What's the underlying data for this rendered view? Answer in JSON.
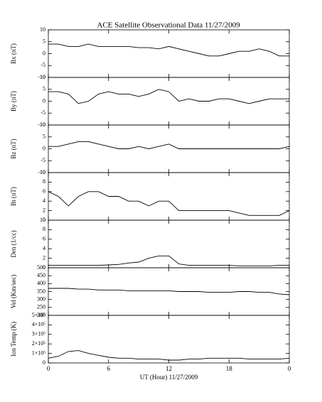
{
  "title": "ACE Satellite Observational Data   11/27/2009",
  "chart_data": [
    {
      "type": "line",
      "ylabel": "Bx (nT)",
      "xlim": [
        0,
        24
      ],
      "x": [
        0,
        1,
        2,
        3,
        4,
        5,
        6,
        7,
        8,
        9,
        10,
        11,
        12,
        13,
        14,
        15,
        16,
        17,
        18,
        19,
        20,
        21,
        22,
        23,
        24
      ],
      "values": [
        4,
        4,
        3,
        3,
        4,
        3,
        3,
        3,
        3,
        2.5,
        2.5,
        2,
        3,
        2,
        1,
        0,
        -1,
        -1,
        0,
        1,
        1,
        2,
        1,
        -1,
        -1
      ],
      "ylim": [
        -10,
        10
      ],
      "yticks": [
        -10,
        -5,
        0,
        5,
        10
      ],
      "color": "#000000"
    },
    {
      "type": "line",
      "ylabel": "By (nT)",
      "xlim": [
        0,
        24
      ],
      "x": [
        0,
        1,
        2,
        3,
        4,
        5,
        6,
        7,
        8,
        9,
        10,
        11,
        12,
        13,
        14,
        15,
        16,
        17,
        18,
        19,
        20,
        21,
        22,
        23,
        24
      ],
      "values": [
        4,
        4,
        3,
        -1,
        0,
        3,
        4,
        3,
        3,
        2,
        3,
        5,
        4,
        0,
        1,
        0,
        0,
        1,
        1,
        0,
        -1,
        0,
        1,
        1,
        1
      ],
      "ylim": [
        -10,
        10
      ],
      "yticks": [
        -10,
        -5,
        0,
        5,
        10
      ],
      "color": "#000000"
    },
    {
      "type": "line",
      "ylabel": "Bz (nT)",
      "xlim": [
        0,
        24
      ],
      "x": [
        0,
        1,
        2,
        3,
        4,
        5,
        6,
        7,
        8,
        9,
        10,
        11,
        12,
        13,
        14,
        15,
        16,
        17,
        18,
        19,
        20,
        21,
        22,
        23,
        24
      ],
      "values": [
        1,
        1,
        2,
        3,
        3,
        2,
        1,
        0,
        0,
        1,
        0,
        1,
        2,
        0,
        0,
        0,
        0,
        0,
        0,
        0,
        0,
        0,
        0,
        0,
        1
      ],
      "ylim": [
        -10,
        10
      ],
      "yticks": [
        -10,
        -5,
        0,
        5,
        10
      ],
      "color": "#000000"
    },
    {
      "type": "line",
      "ylabel": "Bt (nT)",
      "xlim": [
        0,
        24
      ],
      "x": [
        0,
        1,
        2,
        3,
        4,
        5,
        6,
        7,
        8,
        9,
        10,
        11,
        12,
        13,
        14,
        15,
        16,
        17,
        18,
        19,
        20,
        21,
        22,
        23,
        24
      ],
      "values": [
        6,
        5,
        3,
        5,
        6,
        6,
        5,
        5,
        4,
        4,
        3,
        4,
        4,
        2,
        2,
        2,
        2,
        2,
        2,
        1.5,
        1,
        1,
        1,
        1,
        2
      ],
      "ylim": [
        0,
        10
      ],
      "yticks": [
        0,
        2,
        4,
        6,
        8,
        10
      ],
      "color": "#000000"
    },
    {
      "type": "line",
      "ylabel": "Den (1/cc)",
      "xlim": [
        0,
        24
      ],
      "x": [
        0,
        1,
        2,
        3,
        4,
        5,
        6,
        7,
        8,
        9,
        10,
        11,
        12,
        13,
        14,
        15,
        16,
        17,
        18,
        19,
        20,
        21,
        22,
        23,
        24
      ],
      "values": [
        0.5,
        0.5,
        0.5,
        0.5,
        0.5,
        0.5,
        0.6,
        0.7,
        1,
        1.2,
        2,
        2.5,
        2.5,
        0.8,
        0.5,
        0.5,
        0.5,
        0.5,
        0.5,
        0.4,
        0.4,
        0.4,
        0.4,
        0.5,
        0.5
      ],
      "ylim": [
        0,
        10
      ],
      "yticks": [
        0,
        2,
        4,
        6,
        8,
        10
      ],
      "color": "#000000"
    },
    {
      "type": "line",
      "ylabel": "Vel (Km/sec)",
      "xlim": [
        0,
        24
      ],
      "x": [
        0,
        1,
        2,
        3,
        4,
        5,
        6,
        7,
        8,
        9,
        10,
        11,
        12,
        13,
        14,
        15,
        16,
        17,
        18,
        19,
        20,
        21,
        22,
        23,
        24
      ],
      "values": [
        370,
        370,
        370,
        365,
        365,
        360,
        360,
        360,
        355,
        355,
        355,
        355,
        355,
        350,
        350,
        350,
        345,
        345,
        345,
        350,
        350,
        345,
        345,
        335,
        330
      ],
      "ylim": [
        200,
        500
      ],
      "yticks": [
        200,
        250,
        300,
        350,
        400,
        450,
        500
      ],
      "color": "#000000"
    },
    {
      "type": "line",
      "ylabel": "Ion Temp (K)",
      "xlim": [
        0,
        24
      ],
      "xlabel": "UT (Hour)   11/27/2009",
      "xticks": [
        0,
        6,
        12,
        18,
        {
          "value": 24,
          "label": "0"
        }
      ],
      "x": [
        0,
        1,
        2,
        3,
        4,
        5,
        6,
        7,
        8,
        9,
        10,
        11,
        12,
        13,
        14,
        15,
        16,
        17,
        18,
        19,
        20,
        21,
        22,
        23,
        24
      ],
      "values": [
        50000,
        70000,
        120000,
        130000,
        100000,
        80000,
        60000,
        50000,
        50000,
        40000,
        40000,
        40000,
        30000,
        30000,
        40000,
        40000,
        50000,
        50000,
        50000,
        50000,
        40000,
        40000,
        40000,
        40000,
        50000
      ],
      "ylim": [
        0,
        500000
      ],
      "yticks": [
        0,
        {
          "value": 100000,
          "label": "1×10⁵"
        },
        {
          "value": 200000,
          "label": "2×10⁵"
        },
        {
          "value": 300000,
          "label": "3×10⁵"
        },
        {
          "value": 400000,
          "label": "4×10⁵"
        },
        {
          "value": 500000,
          "label": "5×10⁵"
        }
      ],
      "color": "#000000"
    }
  ]
}
